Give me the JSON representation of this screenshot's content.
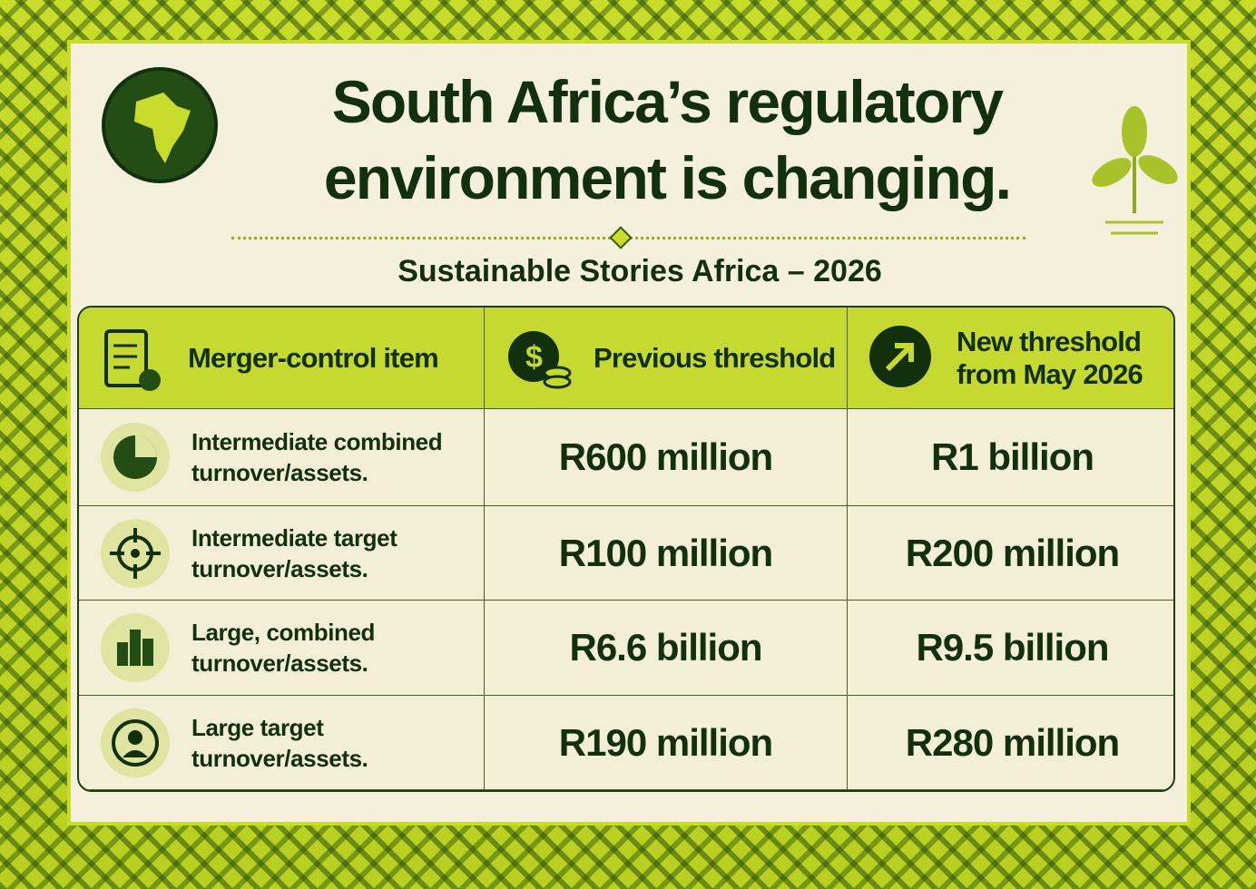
{
  "header": {
    "title": "South Africa’s regulatory environment is changing.",
    "subtitle": "Sustainable Stories Africa – 2026"
  },
  "table": {
    "columns": [
      "Merger-control item",
      "Previous threshold",
      "New threshold from May 2026"
    ],
    "rows": [
      [
        "Intermediate combined turnover/assets.",
        "R600 million",
        "R1 billion"
      ],
      [
        "Intermediate target turnover/assets.",
        "R100 million",
        "R200 million"
      ],
      [
        "Large, combined turnover/assets.",
        "R6.6 billion",
        "R9.5 billion"
      ],
      [
        "Large target turnover/assets.",
        "R190 million",
        "R280 million"
      ]
    ]
  }
}
